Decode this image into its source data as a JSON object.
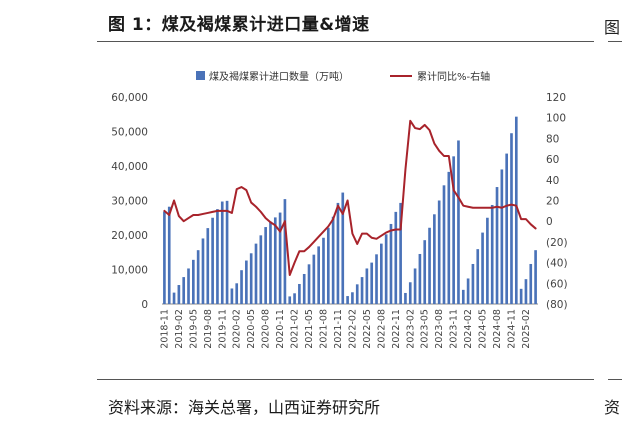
{
  "figure": {
    "title": "图 1：煤及褐煤累计进口量&增速",
    "source": "资料来源：海关总署，山西证券研究所"
  },
  "edge": {
    "top_glyph": "图",
    "bottom_glyph": "资"
  },
  "legend": {
    "bar_label": "煤及褐煤累计进口数量（万吨）",
    "line_label": "累计同比%-右轴"
  },
  "colors": {
    "bar": "#4a72b8",
    "line": "#a8232b",
    "axis": "#888888"
  },
  "chart_data": {
    "type": "bar+line",
    "title": "煤及褐煤累计进口量&增速",
    "categories": [
      "2018-11",
      "2018-12",
      "2019-01",
      "2019-02",
      "2019-03",
      "2019-04",
      "2019-05",
      "2019-06",
      "2019-07",
      "2019-08",
      "2019-09",
      "2019-10",
      "2019-11",
      "2019-12",
      "2020-01",
      "2020-02",
      "2020-03",
      "2020-04",
      "2020-05",
      "2020-06",
      "2020-07",
      "2020-08",
      "2020-09",
      "2020-10",
      "2020-11",
      "2020-12",
      "2021-01",
      "2021-02",
      "2021-03",
      "2021-04",
      "2021-05",
      "2021-06",
      "2021-07",
      "2021-08",
      "2021-09",
      "2021-10",
      "2021-11",
      "2021-12",
      "2022-01",
      "2022-02",
      "2022-03",
      "2022-04",
      "2022-05",
      "2022-06",
      "2022-07",
      "2022-08",
      "2022-09",
      "2022-10",
      "2022-11",
      "2022-12",
      "2023-01",
      "2023-02",
      "2023-03",
      "2023-04",
      "2023-05",
      "2023-06",
      "2023-07",
      "2023-08",
      "2023-09",
      "2023-10",
      "2023-11",
      "2023-12",
      "2024-01",
      "2024-02",
      "2024-03",
      "2024-04",
      "2024-05",
      "2024-06",
      "2024-07",
      "2024-08",
      "2024-09",
      "2024-10",
      "2024-11",
      "2024-12",
      "2025-01",
      "2025-02",
      "2025-03",
      "2025-04"
    ],
    "x_tick_labels": [
      "2018-11",
      "2019-02",
      "2019-05",
      "2019-08",
      "2019-11",
      "2020-02",
      "2020-05",
      "2020-08",
      "2020-11",
      "2021-02",
      "2021-05",
      "2021-08",
      "2021-11",
      "2022-02",
      "2022-05",
      "2022-08",
      "2022-11",
      "2023-02",
      "2023-05",
      "2023-08",
      "2023-11",
      "2024-02",
      "2024-05",
      "2024-08",
      "2024-11",
      "2025-02"
    ],
    "series": [
      {
        "name": "煤及褐煤累计进口数量（万吨）",
        "type": "bar",
        "axis": "left",
        "values": [
          26800,
          28200,
          3300,
          5500,
          7800,
          10300,
          12800,
          15600,
          19000,
          22000,
          25000,
          27500,
          29700,
          29900,
          4500,
          6000,
          9800,
          12600,
          14700,
          17500,
          19900,
          22300,
          23900,
          25100,
          26500,
          30400,
          2200,
          3100,
          5800,
          8700,
          11500,
          14300,
          16700,
          19200,
          22100,
          25300,
          29300,
          32300,
          2300,
          3400,
          5700,
          7800,
          10300,
          12000,
          14400,
          17500,
          20200,
          23200,
          26700,
          29300,
          3200,
          6300,
          10300,
          14500,
          18500,
          22100,
          26000,
          30000,
          34400,
          38300,
          42800,
          47400,
          4100,
          7400,
          11600,
          15900,
          20700,
          25000,
          28700,
          33900,
          39000,
          43600,
          49500,
          54300,
          4400,
          7200,
          11600,
          15600
        ]
      },
      {
        "name": "累计同比%-右轴",
        "type": "line",
        "axis": "right",
        "values": [
          10,
          6,
          20,
          5,
          0,
          3,
          6,
          6,
          7,
          8,
          9,
          10,
          10,
          10,
          8,
          31,
          33,
          30,
          18,
          14,
          9,
          3,
          -1,
          -4,
          -10,
          0,
          -52,
          -40,
          -29,
          -29,
          -25,
          -20,
          -15,
          -10,
          -5,
          2,
          15,
          7,
          20,
          -12,
          -22,
          -12,
          -12,
          -16,
          -17,
          -14,
          -11,
          -9,
          -8,
          -8,
          50,
          97,
          90,
          89,
          93,
          88,
          75,
          68,
          63,
          63,
          30,
          23,
          15,
          14,
          13,
          13,
          13,
          13,
          13,
          14,
          13,
          15,
          16,
          15,
          2,
          2,
          -3,
          -7
        ]
      }
    ],
    "y_left": {
      "min": 0,
      "max": 60000,
      "ticks": [
        "0",
        "10,000",
        "20,000",
        "30,000",
        "40,000",
        "50,000",
        "60,000"
      ]
    },
    "y_right": {
      "min": -80,
      "max": 120,
      "ticks": [
        "(80)",
        "(60)",
        "(40)",
        "(20)",
        "0",
        "20",
        "40",
        "60",
        "80",
        "100",
        "120"
      ]
    },
    "legend_position": "top"
  }
}
